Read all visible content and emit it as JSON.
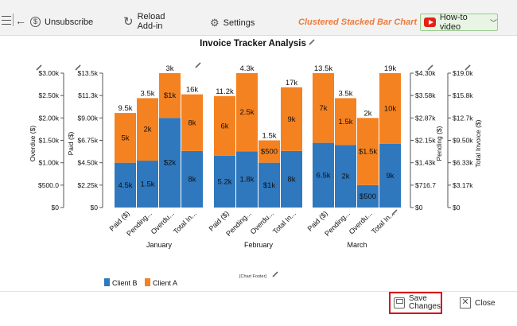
{
  "toolbar": {
    "unsubscribe": "Unsubscribe",
    "reload_line1": "Reload",
    "reload_line2": "Add-in",
    "settings": "Settings",
    "chart_type": "Clustered Stacked Bar Chart",
    "howto": "How-to video"
  },
  "colors": {
    "client_a": "#f58220",
    "client_b": "#2f78be",
    "save_outline": "#d4151c",
    "chart_type_text": "#f07a3a"
  },
  "chart_data": {
    "type": "bar",
    "title": "Invoice Tracker Analysis",
    "footer": "[Chart Footer]",
    "legend": [
      "Client B",
      "Client A"
    ],
    "groups": [
      "January",
      "February",
      "March"
    ],
    "categories": [
      "Paid ($)",
      "Pending...",
      "Overdu...",
      "Total In..."
    ],
    "bars": [
      {
        "group": "January",
        "category": "Paid ($)",
        "axis": "paid",
        "b": 4500,
        "a": 5000,
        "b_label": "4.5k",
        "a_label": "5k",
        "total_label": "9.5k"
      },
      {
        "group": "January",
        "category": "Pending...",
        "axis": "pending",
        "b": 1500,
        "a": 2000,
        "b_label": "1.5k",
        "a_label": "2k",
        "total_label": "3.5k"
      },
      {
        "group": "January",
        "category": "Overdu...",
        "axis": "overdue",
        "b": 2000,
        "a": 1000,
        "b_label": "$2k",
        "a_label": "$1k",
        "total_label": "3k"
      },
      {
        "group": "January",
        "category": "Total In...",
        "axis": "total",
        "b": 8000,
        "a": 8000,
        "b_label": "8k",
        "a_label": "8k",
        "total_label": "16k"
      },
      {
        "group": "February",
        "category": "Paid ($)",
        "axis": "paid",
        "b": 5200,
        "a": 6000,
        "b_label": "5.2k",
        "a_label": "6k",
        "total_label": "11.2k"
      },
      {
        "group": "February",
        "category": "Pending...",
        "axis": "pending",
        "b": 1800,
        "a": 2500,
        "b_label": "1.8k",
        "a_label": "2.5k",
        "total_label": "4.3k"
      },
      {
        "group": "February",
        "category": "Overdu...",
        "axis": "overdue",
        "b": 1000,
        "a": 500,
        "b_label": "$1k",
        "a_label": "$500",
        "total_label": "1.5k"
      },
      {
        "group": "February",
        "category": "Total In...",
        "axis": "total",
        "b": 8000,
        "a": 9000,
        "b_label": "8k",
        "a_label": "9k",
        "total_label": "17k"
      },
      {
        "group": "March",
        "category": "Paid ($)",
        "axis": "paid",
        "b": 6500,
        "a": 7000,
        "b_label": "6.5k",
        "a_label": "7k",
        "total_label": "13.5k"
      },
      {
        "group": "March",
        "category": "Pending...",
        "axis": "pending",
        "b": 2000,
        "a": 1500,
        "b_label": "2k",
        "a_label": "1.5k",
        "total_label": "3.5k"
      },
      {
        "group": "March",
        "category": "Overdu...",
        "axis": "overdue",
        "b": 500,
        "a": 1500,
        "b_label": "$500",
        "a_label": "$1.5k",
        "total_label": "2k"
      },
      {
        "group": "March",
        "category": "Total In...",
        "axis": "total",
        "b": 9000,
        "a": 10000,
        "b_label": "9k",
        "a_label": "10k",
        "total_label": "19k"
      }
    ],
    "axes": {
      "overdue": {
        "label": "Overdue ($)",
        "max": 3000,
        "ticks": [
          "$0",
          "$500.0",
          "$1.00k",
          "$1.50k",
          "$2.00k",
          "$2.50k",
          "$3.00k"
        ]
      },
      "paid": {
        "label": "Paid ($)",
        "max": 13500,
        "ticks": [
          "$0",
          "$2.25k",
          "$4.50k",
          "$6.75k",
          "$9.00k",
          "$11.3k",
          "$13.5k"
        ]
      },
      "pending": {
        "label": "Pending ($)",
        "max": 4300,
        "ticks": [
          "$0",
          "$716.7",
          "$1.43k",
          "$2.15k",
          "$2.87k",
          "$3.58k",
          "$4.30k"
        ]
      },
      "total": {
        "label": "Total Invoice ($)",
        "max": 19000,
        "ticks": [
          "$0",
          "$3.17k",
          "$6.33k",
          "$9.50k",
          "$12.7k",
          "$15.8k",
          "$19.0k"
        ]
      }
    }
  },
  "bottom": {
    "save_line1": "Save",
    "save_line2": "Changes",
    "close": "Close"
  }
}
